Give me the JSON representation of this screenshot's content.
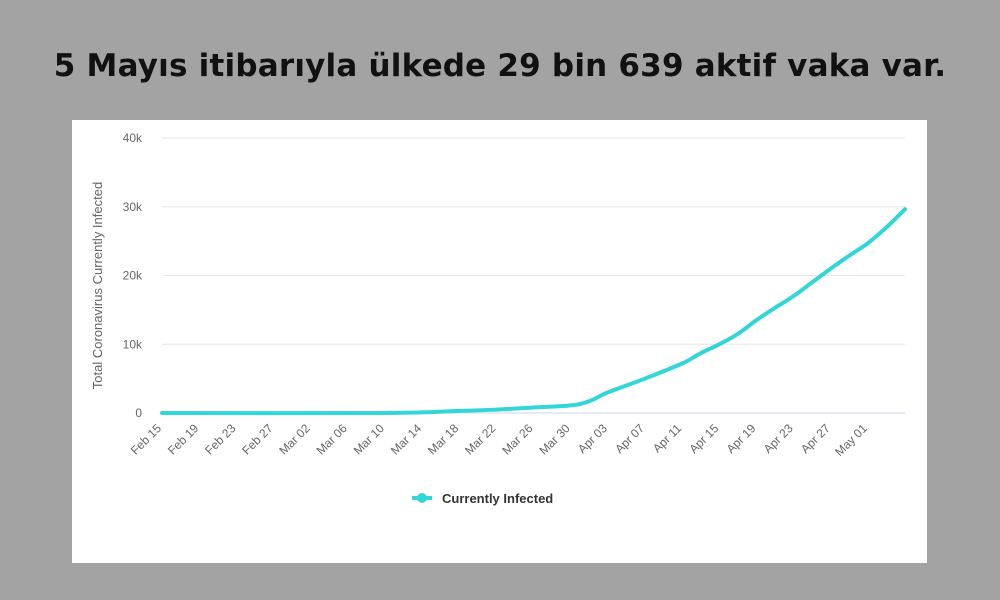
{
  "headline": "5 Mayıs itibarıyla ülkede 29 bin 639 aktif vaka var.",
  "colors": {
    "background": "#a3a3a3",
    "panel": "#ffffff",
    "line": "#33d6d6",
    "grid": "#e6e6e6"
  },
  "chart_data": {
    "type": "line",
    "title": "",
    "xlabel": "",
    "ylabel": "Total Coronavirus Currently Infected",
    "ylim": [
      0,
      40000
    ],
    "y_ticks": [
      0,
      10000,
      20000,
      30000,
      40000
    ],
    "y_tick_labels": [
      "0",
      "10k",
      "20k",
      "30k",
      "40k"
    ],
    "x_tick_labels": [
      "Feb 15",
      "Feb 19",
      "Feb 23",
      "Feb 27",
      "Mar 02",
      "Mar 06",
      "Mar 10",
      "Mar 14",
      "Mar 18",
      "Mar 22",
      "Mar 26",
      "Mar 30",
      "Apr 03",
      "Apr 07",
      "Apr 11",
      "Apr 15",
      "Apr 19",
      "Apr 23",
      "Apr 27",
      "May 01"
    ],
    "x_range": [
      "Feb 15",
      "May 05"
    ],
    "grid": true,
    "legend_position": "bottom",
    "series": [
      {
        "name": "Currently Infected",
        "color": "#33d6d6",
        "x": [
          "Feb 15",
          "Mar 10",
          "Mar 18",
          "Mar 22",
          "Mar 26",
          "Mar 30",
          "Apr 01",
          "Apr 03",
          "Apr 07",
          "Apr 11",
          "Apr 13",
          "Apr 15",
          "Apr 17",
          "Apr 19",
          "Apr 21",
          "Apr 23",
          "Apr 25",
          "Apr 27",
          "Apr 29",
          "May 01",
          "May 03",
          "May 05"
        ],
        "values": [
          0,
          0,
          300,
          500,
          800,
          1100,
          1700,
          3000,
          5000,
          7200,
          8700,
          10000,
          11500,
          13500,
          15300,
          17000,
          19000,
          21000,
          22900,
          24700,
          27000,
          29639
        ]
      }
    ]
  }
}
